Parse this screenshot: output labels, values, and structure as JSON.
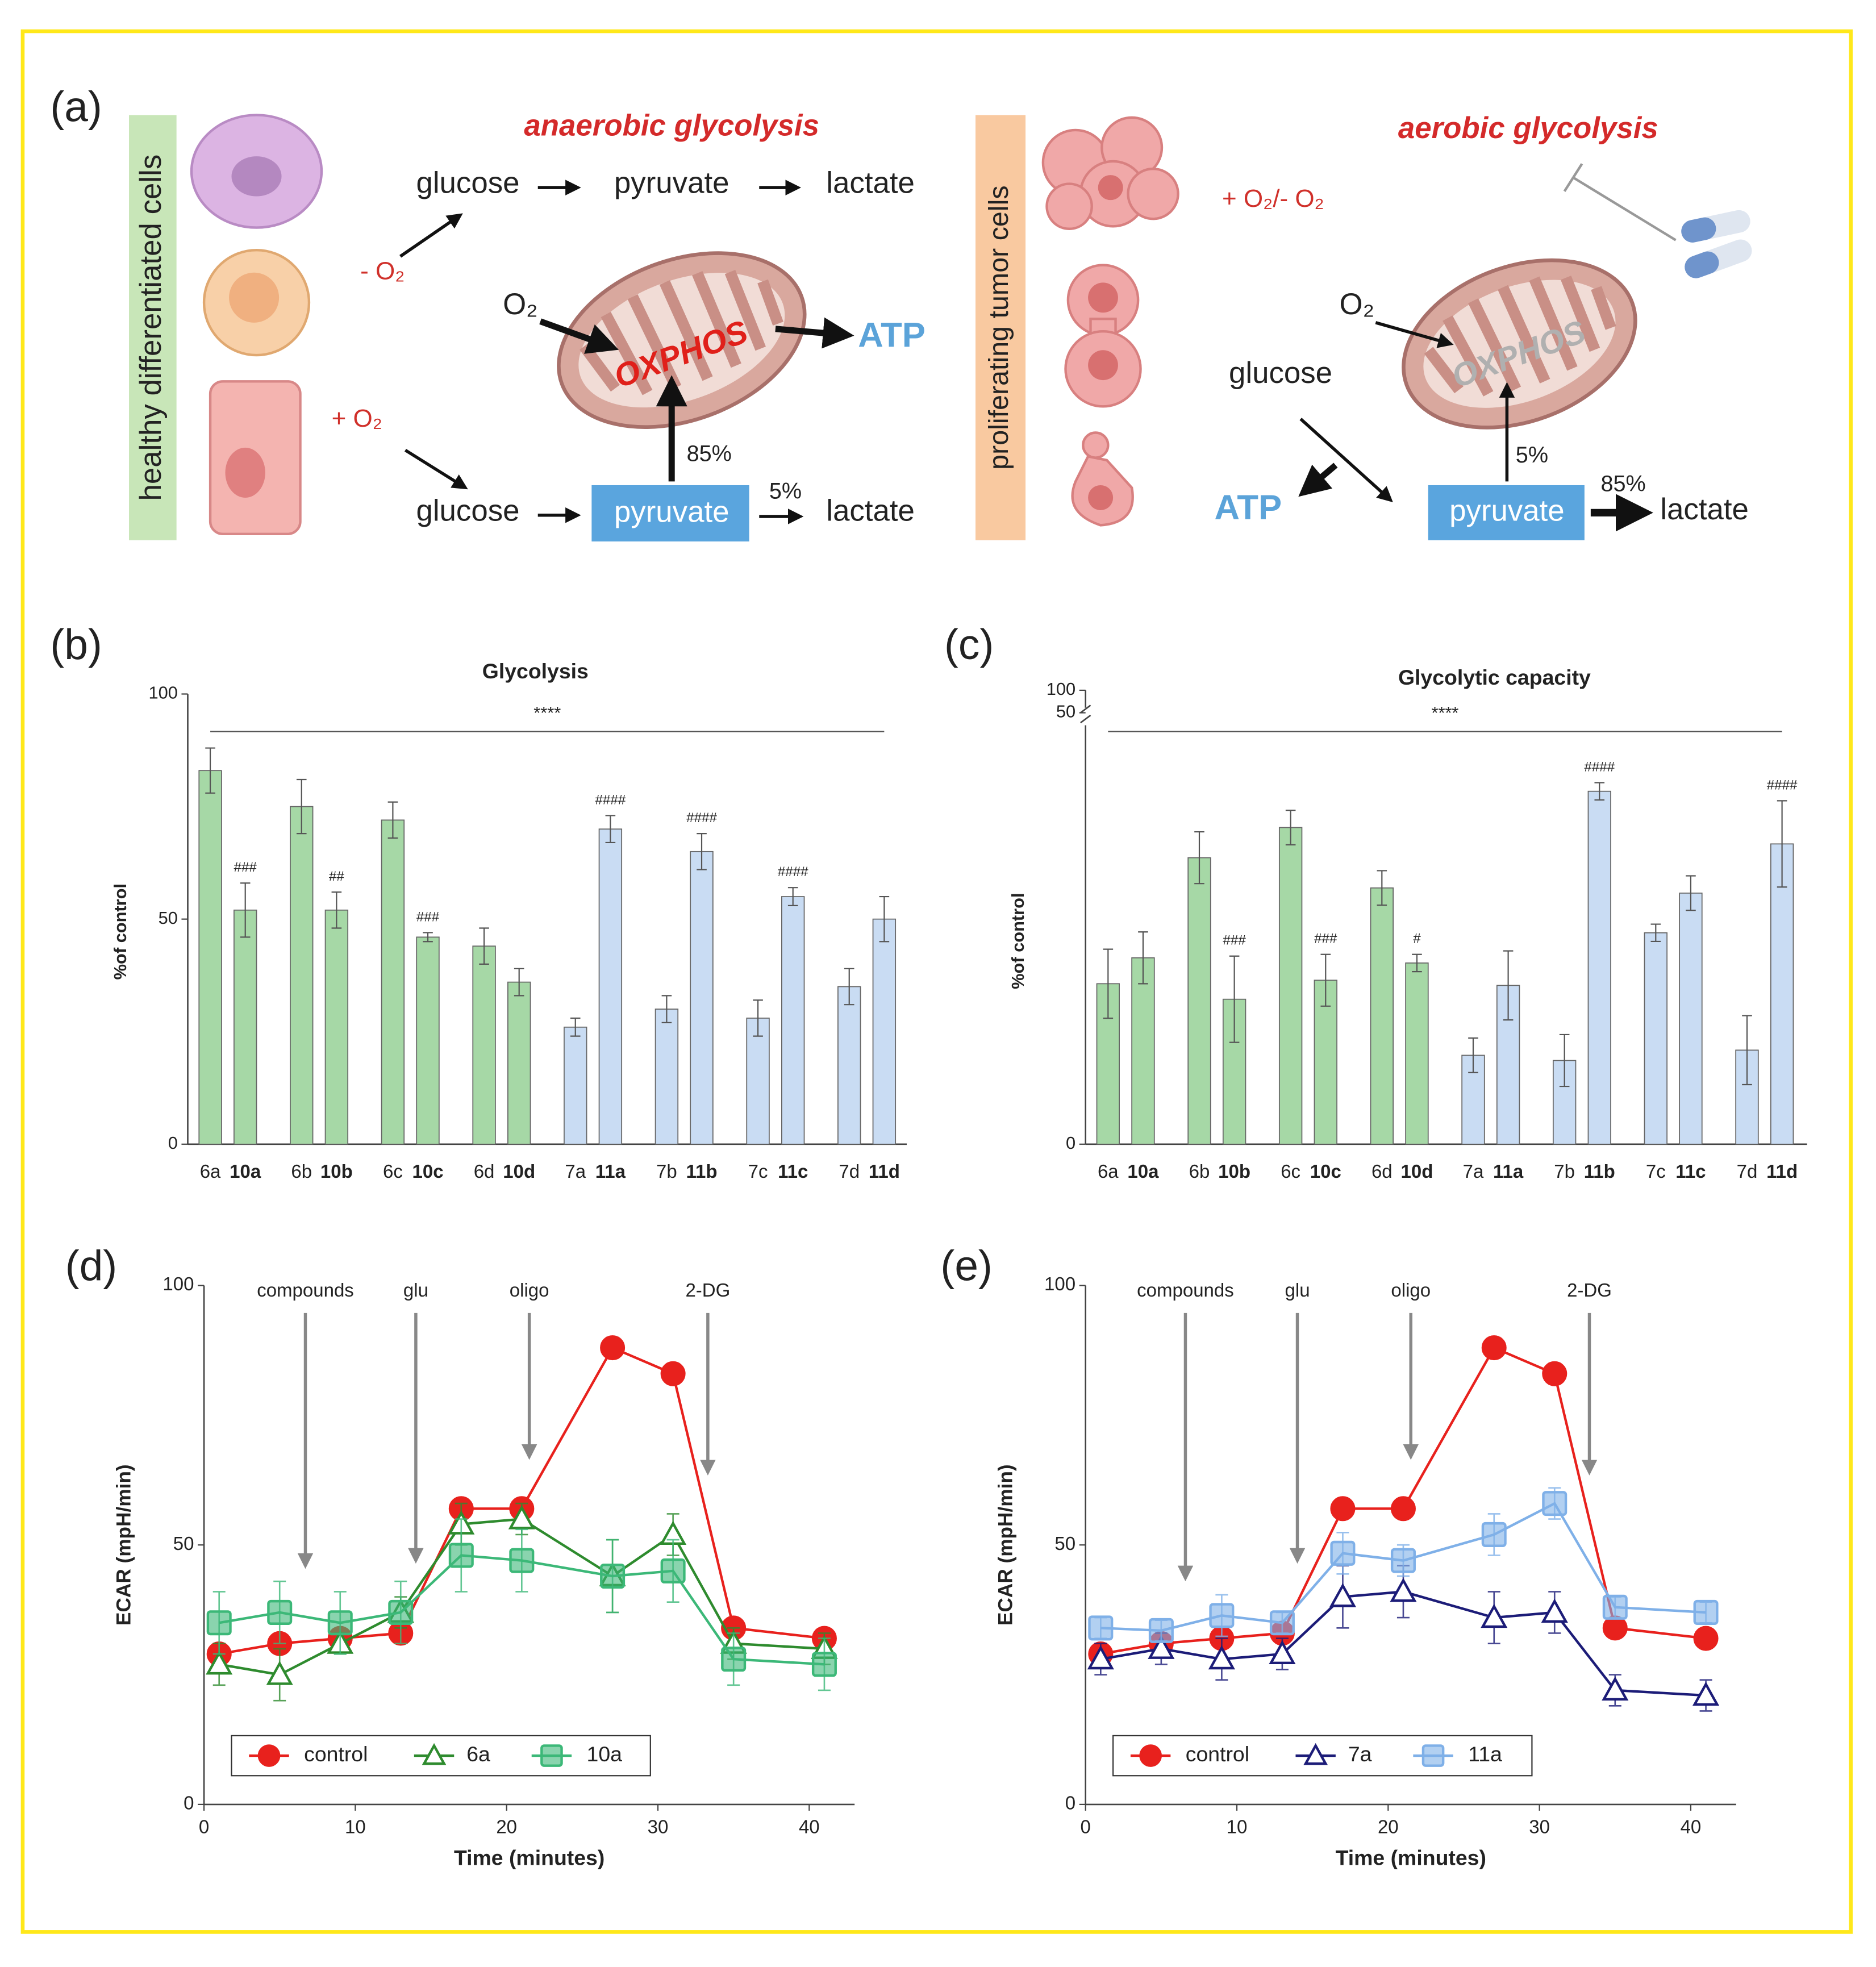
{
  "diagram": {
    "panel_label": "(a)",
    "healthy_label": "healthy differentiated cells",
    "minus_o2": "- O₂",
    "plus_o2": "+ O₂",
    "anaerobic_title": "anaerobic glycolysis",
    "top_glucose": "glucose",
    "top_pyruvate": "pyruvate",
    "top_lactate": "lactate",
    "left_o2": "O₂",
    "left_oxphos": "OXPHOS",
    "left_atp": "ATP",
    "left_85": "85%",
    "left_5": "5%",
    "bottom_glucose": "glucose",
    "bottom_pyruvate": "pyruvate",
    "bottom_lactate": "lactate",
    "tumor_label": "proliferating tumor cells",
    "tumor_o2": "+ O₂/- O₂",
    "aerobic_title": "aerobic glycolysis",
    "right_o2": "O₂",
    "right_oxphos": "OXPHOS",
    "right_glucose": "glucose",
    "right_5": "5%",
    "right_85": "85%",
    "right_atp": "ATP",
    "right_pyruvate": "pyruvate",
    "right_lactate": "lactate"
  },
  "chart_data": [
    {
      "type": "bar",
      "panel_label": "(b)",
      "title": "Glycolysis",
      "ylabel": "%of control",
      "categories": [
        "6a",
        "10a",
        "6b",
        "10b",
        "6c",
        "10c",
        "6d",
        "10d",
        "7a",
        "11a",
        "7b",
        "11b",
        "7c",
        "11c",
        "7d",
        "11d"
      ],
      "values": [
        83,
        52,
        75,
        52,
        72,
        46,
        44,
        36,
        26,
        70,
        30,
        65,
        28,
        55,
        35,
        50
      ],
      "errors": [
        5,
        6,
        6,
        4,
        4,
        1,
        4,
        3,
        2,
        3,
        3,
        4,
        4,
        2,
        4,
        5
      ],
      "colors": [
        "#a6d8a6",
        "#a6d8a6",
        "#a6d8a6",
        "#a6d8a6",
        "#a6d8a6",
        "#a6d8a6",
        "#a6d8a6",
        "#a6d8a6",
        "#c9dcf3",
        "#c9dcf3",
        "#c9dcf3",
        "#c9dcf3",
        "#c9dcf3",
        "#c9dcf3",
        "#c9dcf3",
        "#c9dcf3"
      ],
      "significance": [
        null,
        "###",
        null,
        "##",
        null,
        "###",
        null,
        null,
        null,
        "####",
        null,
        "####",
        null,
        "####",
        null,
        null
      ],
      "overall_significance": "****",
      "ylim": [
        0,
        100
      ],
      "yticks": [
        0,
        50,
        100
      ]
    },
    {
      "type": "bar",
      "panel_label": "(c)",
      "title": "Glycolytic capacity",
      "ylabel": "%of control",
      "categories": [
        "6a",
        "10a",
        "6b",
        "10b",
        "6c",
        "10c",
        "6d",
        "10d",
        "7a",
        "11a",
        "7b",
        "11b",
        "7c",
        "11c",
        "7d",
        "11d"
      ],
      "values": [
        18.6,
        21.6,
        33.2,
        16.8,
        36.7,
        19.0,
        29.7,
        21.0,
        10.3,
        18.4,
        9.7,
        40.9,
        24.5,
        29.1,
        10.9,
        34.8
      ],
      "errors": [
        4,
        3,
        3,
        5,
        2,
        3,
        2,
        1,
        2,
        4,
        3,
        1,
        1,
        2,
        4,
        5
      ],
      "colors": [
        "#a6d8a6",
        "#a6d8a6",
        "#a6d8a6",
        "#a6d8a6",
        "#a6d8a6",
        "#a6d8a6",
        "#a6d8a6",
        "#a6d8a6",
        "#c9dcf3",
        "#c9dcf3",
        "#c9dcf3",
        "#c9dcf3",
        "#c9dcf3",
        "#c9dcf3",
        "#c9dcf3",
        "#c9dcf3"
      ],
      "significance": [
        null,
        null,
        null,
        "###",
        null,
        "###",
        null,
        "#",
        null,
        null,
        null,
        "####",
        null,
        null,
        null,
        "####"
      ],
      "overall_significance": "****",
      "ylim": [
        0,
        50
      ],
      "yticks": [
        0,
        50,
        100
      ],
      "axis_break": true
    },
    {
      "type": "line",
      "panel_label": "(d)",
      "xlabel": "Time (minutes)",
      "ylabel": "ECAR (mpH/min)",
      "x": [
        1,
        5,
        9,
        13,
        17,
        21,
        27,
        31,
        35,
        41
      ],
      "series": [
        {
          "name": "control",
          "color": "#e8211d",
          "marker": "circle",
          "filled": true,
          "values": [
            29,
            31,
            32,
            33,
            57,
            57,
            88,
            83,
            34,
            32
          ],
          "errors": [
            2,
            1,
            1,
            1,
            1,
            1,
            2,
            2,
            1,
            1
          ]
        },
        {
          "name": "6a",
          "color": "#2e8b2e",
          "marker": "triangle",
          "filled": false,
          "values": [
            27,
            25,
            31,
            37,
            54,
            55,
            44,
            52,
            31,
            30
          ],
          "errors": [
            4,
            5,
            2,
            3,
            4,
            3,
            7,
            4,
            3,
            3
          ]
        },
        {
          "name": "10a",
          "color": "#3cb878",
          "marker": "square",
          "filled": true,
          "values": [
            35,
            37,
            35,
            37,
            48,
            47,
            44,
            45,
            28,
            27
          ],
          "errors": [
            6,
            6,
            6,
            6,
            7,
            6,
            7,
            6,
            5,
            5
          ]
        }
      ],
      "annotations": [
        {
          "text": "compounds",
          "x": 6.7,
          "y": 46
        },
        {
          "text": "glu",
          "x": 14,
          "y": 47
        },
        {
          "text": "oligo",
          "x": 21.5,
          "y": 67
        },
        {
          "text": "2-DG",
          "x": 33.3,
          "y": 64
        }
      ],
      "xlim": [
        0,
        43
      ],
      "xticks": [
        0,
        10,
        20,
        30,
        40
      ],
      "ylim": [
        0,
        100
      ],
      "yticks": [
        0,
        50,
        100
      ],
      "legend": "lower left"
    },
    {
      "type": "line",
      "panel_label": "(e)",
      "xlabel": "Time (minutes)",
      "ylabel": "ECAR (mpH/min)",
      "x": [
        1,
        5,
        9,
        13,
        17,
        21,
        27,
        31,
        35,
        41
      ],
      "series": [
        {
          "name": "control",
          "color": "#e8211d",
          "marker": "circle",
          "filled": true,
          "values": [
            29,
            31,
            32,
            33,
            57,
            57,
            88,
            83,
            34,
            32
          ],
          "errors": [
            2,
            1,
            1,
            1,
            1,
            1,
            2,
            2,
            1,
            1
          ]
        },
        {
          "name": "7a",
          "color": "#1c1c78",
          "marker": "triangle",
          "filled": false,
          "values": [
            28,
            30,
            28,
            29,
            40,
            41,
            36,
            37,
            22,
            21
          ],
          "errors": [
            3,
            3,
            4,
            3,
            6,
            5,
            5,
            4,
            3,
            3
          ]
        },
        {
          "name": "11a",
          "color": "#7fb0e8",
          "marker": "square",
          "filled": true,
          "values": [
            34,
            33.5,
            36.4,
            35,
            48.4,
            47,
            52,
            58,
            38,
            37
          ],
          "errors": [
            2,
            2,
            4,
            2,
            4,
            3,
            4,
            3,
            2,
            2
          ]
        }
      ],
      "annotations": [
        {
          "text": "compounds",
          "x": 6.6,
          "y": 43.6
        },
        {
          "text": "glu",
          "x": 14,
          "y": 47
        },
        {
          "text": "oligo",
          "x": 21.5,
          "y": 67
        },
        {
          "text": "2-DG",
          "x": 33.3,
          "y": 64
        }
      ],
      "xlim": [
        0,
        43
      ],
      "xticks": [
        0,
        10,
        20,
        30,
        40
      ],
      "ylim": [
        0,
        100
      ],
      "yticks": [
        0,
        50,
        100
      ],
      "legend": "lower left"
    }
  ]
}
